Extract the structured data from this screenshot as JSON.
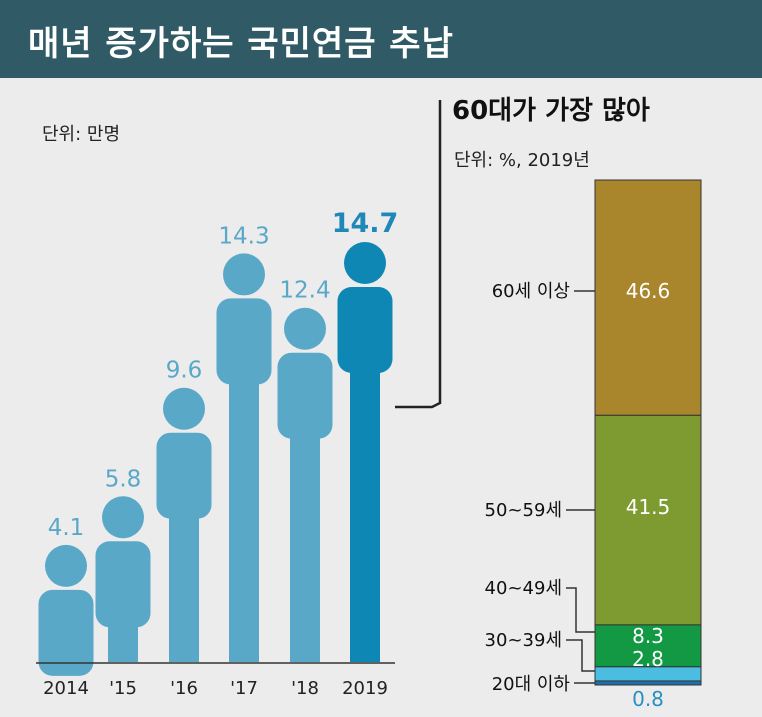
{
  "header": {
    "title": "매년 증가하는 국민연금 추납"
  },
  "colors": {
    "header_bg": "#2f5a66",
    "person": "#5aa8c8",
    "person_highlight": "#0f87b5",
    "age_60_plus": "#a9852c",
    "age_50_59": "#7e9b32",
    "age_40_49": "#139944",
    "age_30_39": "#4bbde0",
    "age_20_under": "#1f6fae"
  },
  "chart_data": [
    {
      "type": "bar",
      "unit_label": "단위: 만명",
      "categories": [
        "2014",
        "'15",
        "'16",
        "'17",
        "'18",
        "2019"
      ],
      "values": [
        4.1,
        5.8,
        9.6,
        14.3,
        12.4,
        14.7
      ],
      "value_labels": [
        "4.1",
        "5.8",
        "9.6",
        "14.3",
        "12.4",
        "14.7"
      ],
      "highlight_index": 5
    },
    {
      "type": "bar",
      "stacked": true,
      "title": "60대가 가장 많아",
      "unit_label": "단위: %, 2019년",
      "categories": [
        "60세 이상",
        "50~59세",
        "40~49세",
        "30~39세",
        "20대 이하"
      ],
      "values": [
        46.6,
        41.5,
        8.3,
        2.8,
        0.8
      ],
      "value_labels": [
        "46.6",
        "41.5",
        "8.3",
        "2.8",
        "0.8"
      ]
    }
  ]
}
